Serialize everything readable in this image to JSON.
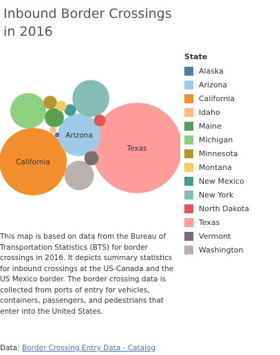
{
  "title": "Inbound Border Crossings in 2016",
  "chart_data": {
    "type": "bubble",
    "title": "Inbound Border Crossings in 2016",
    "legend_title": "State",
    "legend_position": "right",
    "series": [
      {
        "name": "Alaska",
        "color": "#4e79a7",
        "label": "",
        "rel_size": 0.005
      },
      {
        "name": "Arizona",
        "color": "#a0cbe8",
        "label": "Arizona",
        "rel_size": 0.4
      },
      {
        "name": "California",
        "color": "#f28e2b",
        "label": "California",
        "rel_size": 1.0
      },
      {
        "name": "Idaho",
        "color": "#ffbe7d",
        "label": "",
        "rel_size": 0.01
      },
      {
        "name": "Maine",
        "color": "#59a14f",
        "label": "",
        "rel_size": 0.08
      },
      {
        "name": "Michigan",
        "color": "#8cd17d",
        "label": "",
        "rel_size": 0.28
      },
      {
        "name": "Minnesota",
        "color": "#b6992d",
        "label": "",
        "rel_size": 0.04
      },
      {
        "name": "Montana",
        "color": "#f1ce63",
        "label": "",
        "rel_size": 0.025
      },
      {
        "name": "New Mexico",
        "color": "#499894",
        "label": "",
        "rel_size": 0.03
      },
      {
        "name": "New York",
        "color": "#86bcb6",
        "label": "",
        "rel_size": 0.3
      },
      {
        "name": "North Dakota",
        "color": "#e15759",
        "label": "",
        "rel_size": 0.03
      },
      {
        "name": "Texas",
        "color": "#ff9d9a",
        "label": "Texas",
        "rel_size": 1.8
      },
      {
        "name": "Vermont",
        "color": "#79706e",
        "label": "",
        "rel_size": 0.045
      },
      {
        "name": "Washington",
        "color": "#bab0ac",
        "label": "",
        "rel_size": 0.19
      }
    ]
  },
  "description": "This map is based on data from the Bureau of Transportation Statistics (BTS) for border crossings in 2016. It depicts summary statistics for inbound crossings at the US-Canada and the US Mexico border. The border crossing data is collected from ports of entry for vehicles, containers, passengers, and pedestrians that enter into the United States.",
  "source": {
    "prefix": "Data: ",
    "link_text": "Border Crossing Entry Data - Catalog"
  }
}
